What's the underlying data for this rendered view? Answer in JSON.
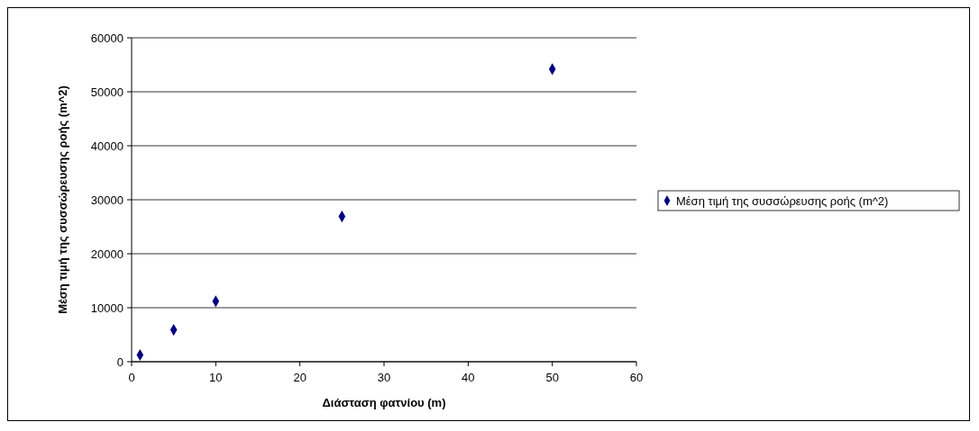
{
  "chart_data": {
    "type": "scatter",
    "xlabel": "Διάσταση φατνίου (m)",
    "ylabel": "Μέση τιμή της συσσώρευσης ροής (m^2)",
    "x": [
      1,
      5,
      10,
      25,
      50
    ],
    "series": [
      {
        "name": "Μέση τιμή της συσσώρευσης ροής (m^2)",
        "color": "#000080",
        "values": [
          1250,
          5900,
          11200,
          26900,
          54200
        ]
      }
    ],
    "xlim": [
      0,
      60
    ],
    "xticks": [
      0,
      10,
      20,
      30,
      40,
      50,
      60
    ],
    "ylim": [
      0,
      60000
    ],
    "yticks": [
      0,
      10000,
      20000,
      30000,
      40000,
      50000,
      60000
    ],
    "grid": "y",
    "legend": "right",
    "marker": "diamond"
  }
}
